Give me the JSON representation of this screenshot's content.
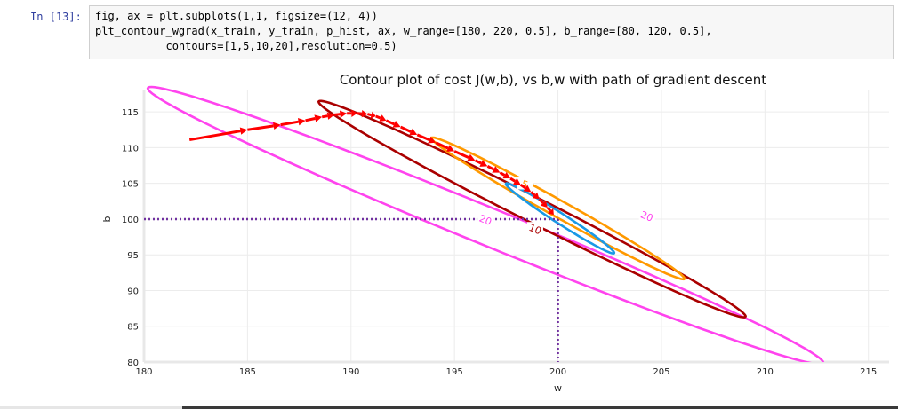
{
  "notebook": {
    "prompt": "In [13]:",
    "code_lines": [
      "fig, ax = plt.subplots(1,1, figsize=(12, 4))",
      "plt_contour_wgrad(x_train, y_train, p_hist, ax, w_range=[180, 220, 0.5], b_range=[80, 120, 0.5],",
      "           contours=[1,5,10,20],resolution=0.5)"
    ]
  },
  "chart_data": {
    "type": "contour",
    "title": "Contour plot of cost J(w,b), vs b,w with path of gradient descent",
    "xlabel": "w",
    "ylabel": "b",
    "xlim": [
      180,
      216
    ],
    "ylim": [
      80,
      118
    ],
    "xticks": [
      180,
      185,
      190,
      195,
      200,
      205,
      210,
      215
    ],
    "yticks": [
      80,
      85,
      90,
      95,
      100,
      105,
      110,
      115
    ],
    "grid": true,
    "contours": [
      {
        "level": 20,
        "label": "20",
        "color": "#ff44ee",
        "center": [
          196.5,
          99.1
        ],
        "half_major": [
          16.3,
          -19.3
        ],
        "half_minor": [
          0.8,
          1.9
        ]
      },
      {
        "level": 10,
        "label": "10",
        "color": "#aa0000",
        "center": [
          198.75,
          101.4
        ],
        "half_major": [
          10.3,
          -15.1
        ],
        "half_minor": [
          0.6,
          1.1
        ]
      },
      {
        "level": 5,
        "label": "5",
        "color": "#ff9900",
        "center": [
          200.0,
          101.5
        ],
        "half_major": [
          6.1,
          -9.9
        ],
        "half_minor": [
          0.4,
          0.7
        ]
      },
      {
        "level": 1,
        "label": "",
        "color": "#1a99e6",
        "center": [
          200.1,
          100.1
        ],
        "half_major": [
          2.6,
          -4.9
        ],
        "half_minor": [
          0.3,
          0.3
        ]
      }
    ],
    "contour_labels": [
      {
        "text": "20",
        "color": "#ff44ee",
        "w": 196.5,
        "b": 99.9
      },
      {
        "text": "20",
        "color": "#ff44ee",
        "w": 204.3,
        "b": 100.4
      },
      {
        "text": "10",
        "color": "#aa0000",
        "w": 198.9,
        "b": 98.6
      },
      {
        "text": "5",
        "color": "#ff9900",
        "w": 198.4,
        "b": 104.9
      }
    ],
    "target": {
      "w": 200,
      "b": 100,
      "color": "#7030a0"
    },
    "path": {
      "color": "#ff0000",
      "points": [
        [
          182.2,
          111.1
        ],
        [
          185.0,
          112.5
        ],
        [
          186.6,
          113.2
        ],
        [
          187.8,
          113.8
        ],
        [
          188.6,
          114.3
        ],
        [
          189.2,
          114.6
        ],
        [
          189.8,
          114.8
        ],
        [
          190.3,
          114.8
        ],
        [
          190.8,
          114.7
        ],
        [
          191.2,
          114.4
        ],
        [
          191.7,
          113.8
        ],
        [
          192.4,
          112.9
        ],
        [
          193.2,
          111.8
        ],
        [
          194.1,
          110.7
        ],
        [
          195.0,
          109.5
        ],
        [
          196.0,
          108.2
        ],
        [
          196.6,
          107.4
        ],
        [
          197.2,
          106.5
        ],
        [
          197.7,
          105.7
        ],
        [
          198.2,
          104.8
        ],
        [
          198.7,
          103.8
        ],
        [
          199.1,
          102.8
        ],
        [
          199.5,
          101.6
        ],
        [
          199.8,
          100.6
        ]
      ]
    }
  }
}
